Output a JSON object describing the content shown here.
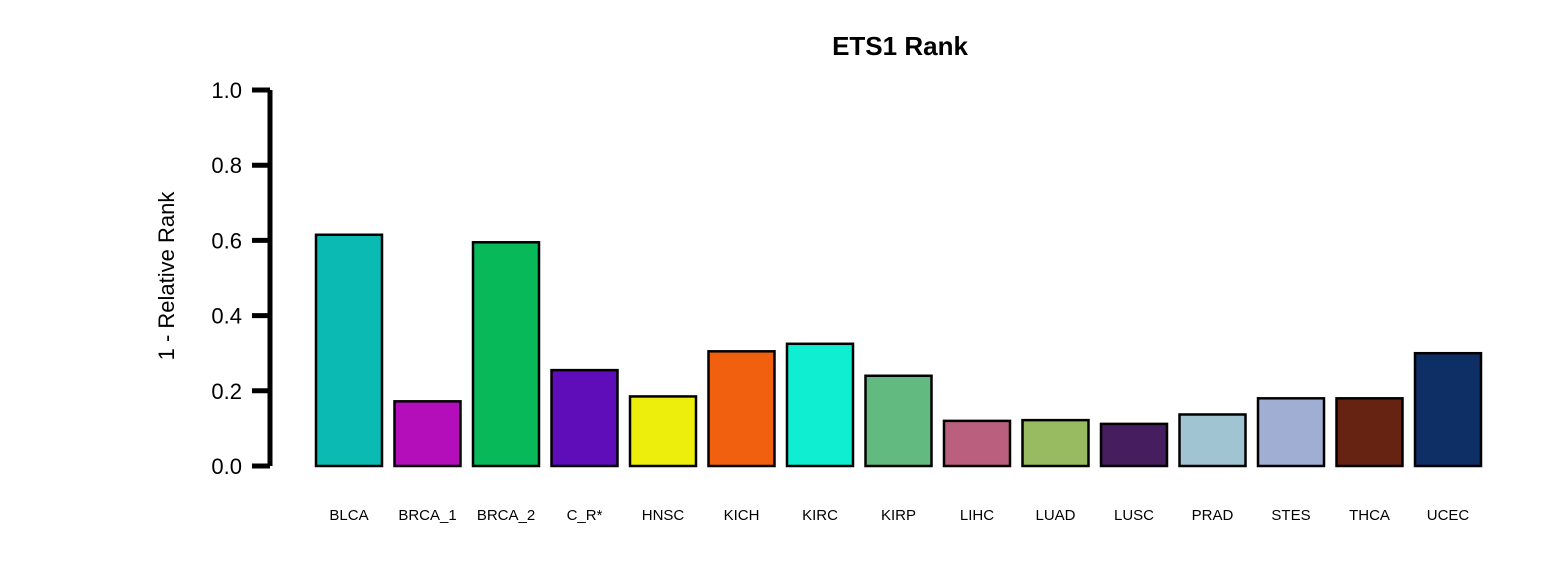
{
  "chart_data": {
    "type": "bar",
    "title": "ETS1 Rank",
    "xlabel": "",
    "ylabel": "1 - Relative Rank",
    "ylim": [
      0,
      1.0
    ],
    "yticks": [
      "0.0",
      "0.2",
      "0.4",
      "0.6",
      "0.8",
      "1.0"
    ],
    "grid": false,
    "categories": [
      "BLCA",
      "BRCA_1",
      "BRCA_2",
      "C_R*",
      "HNSC",
      "KICH",
      "KIRC",
      "KIRP",
      "LIHC",
      "LUAD",
      "LUSC",
      "PRAD",
      "STES",
      "THCA",
      "UCEC"
    ],
    "values": [
      0.615,
      0.172,
      0.595,
      0.255,
      0.185,
      0.305,
      0.325,
      0.24,
      0.12,
      0.122,
      0.112,
      0.137,
      0.18,
      0.18,
      0.3
    ],
    "colors": [
      "#0BBBB3",
      "#B30EBA",
      "#08B959",
      "#5E0DB8",
      "#EEEE0C",
      "#F1600F",
      "#10EED2",
      "#62BA80",
      "#BA607E",
      "#98BB62",
      "#461D5E",
      "#A1C4D3",
      "#9FAED2",
      "#662312",
      "#0E2F66"
    ]
  }
}
